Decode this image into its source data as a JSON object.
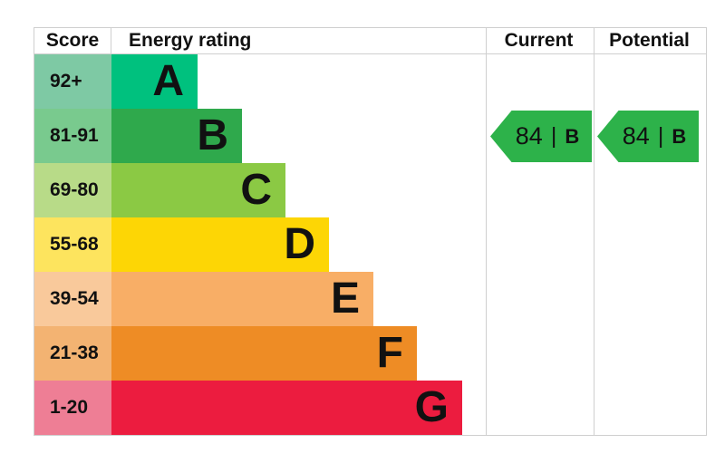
{
  "chart_data": {
    "type": "bar",
    "orientation": "horizontal",
    "columns": [
      "Score",
      "Energy rating",
      "Current",
      "Potential"
    ],
    "bands": [
      {
        "letter": "A",
        "score_range": "92+",
        "bar_color": "#00c17e",
        "score_cell_color": "#7ec9a4",
        "relative_bar_length": 1
      },
      {
        "letter": "B",
        "score_range": "81-91",
        "bar_color": "#2fa94c",
        "score_cell_color": "#79ca8e",
        "relative_bar_length": 2
      },
      {
        "letter": "C",
        "score_range": "69-80",
        "bar_color": "#8bc944",
        "score_cell_color": "#b8db88",
        "relative_bar_length": 3
      },
      {
        "letter": "D",
        "score_range": "55-68",
        "bar_color": "#fdd605",
        "score_cell_color": "#fde45e",
        "relative_bar_length": 4
      },
      {
        "letter": "E",
        "score_range": "39-54",
        "bar_color": "#f8ae66",
        "score_cell_color": "#f9c99b",
        "relative_bar_length": 5
      },
      {
        "letter": "F",
        "score_range": "21-38",
        "bar_color": "#ee8c25",
        "score_cell_color": "#f3b372",
        "relative_bar_length": 6
      },
      {
        "letter": "G",
        "score_range": "1-20",
        "bar_color": "#ec1c3f",
        "score_cell_color": "#ee7e95",
        "relative_bar_length": 7
      }
    ],
    "markers": [
      {
        "column": "Current",
        "score": 84,
        "rating": "B",
        "color": "#2db24a"
      },
      {
        "column": "Potential",
        "score": 84,
        "rating": "B",
        "color": "#2db24a"
      }
    ]
  },
  "headers": {
    "score": "Score",
    "energy_rating": "Energy rating",
    "current": "Current",
    "potential": "Potential"
  },
  "bands": [
    {
      "score": "92+",
      "letter": "A",
      "score_style": "background:#7ec9a4",
      "bar_style": "width:95px;background:#00c17e"
    },
    {
      "score": "81-91",
      "letter": "B",
      "score_style": "background:#79ca8e",
      "bar_style": "width:144px;background:#2fa94c"
    },
    {
      "score": "69-80",
      "letter": "C",
      "score_style": "background:#b8db88",
      "bar_style": "width:192px;background:#8bc944"
    },
    {
      "score": "55-68",
      "letter": "D",
      "score_style": "background:#fde45e",
      "bar_style": "width:240px;background:#fdd605"
    },
    {
      "score": "39-54",
      "letter": "E",
      "score_style": "background:#f9c99b",
      "bar_style": "width:289px;background:#f8ae66"
    },
    {
      "score": "21-38",
      "letter": "F",
      "score_style": "background:#f3b372",
      "bar_style": "width:337px;background:#ee8c25"
    },
    {
      "score": "1-20",
      "letter": "G",
      "score_style": "background:#ee7e95",
      "bar_style": "width:387px;background:#ec1c3f"
    }
  ],
  "current_badge": {
    "value": "84",
    "separator": "|",
    "letter": "B",
    "style": "background:#2db24a"
  },
  "potential_badge": {
    "value": "84",
    "separator": "|",
    "letter": "B",
    "style": "background:#2db24a"
  }
}
